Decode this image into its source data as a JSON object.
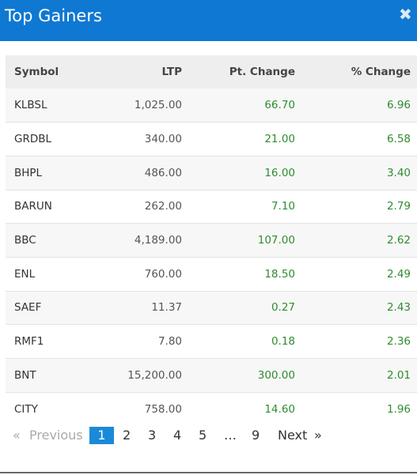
{
  "header": {
    "title": "Top Gainers",
    "close_glyph": "✖",
    "close_icon": "close-icon"
  },
  "table": {
    "columns": [
      "Symbol",
      "LTP",
      "Pt. Change",
      "% Change"
    ],
    "rows": [
      [
        "KLBSL",
        "1,025.00",
        "66.70",
        "6.96"
      ],
      [
        "GRDBL",
        "340.00",
        "21.00",
        "6.58"
      ],
      [
        "BHPL",
        "486.00",
        "16.00",
        "3.40"
      ],
      [
        "BARUN",
        "262.00",
        "7.10",
        "2.79"
      ],
      [
        "BBC",
        "4,189.00",
        "107.00",
        "2.62"
      ],
      [
        "ENL",
        "760.00",
        "18.50",
        "2.49"
      ],
      [
        "SAEF",
        "11.37",
        "0.27",
        "2.43"
      ],
      [
        "RMF1",
        "7.80",
        "0.18",
        "2.36"
      ],
      [
        "BNT",
        "15,200.00",
        "300.00",
        "2.01"
      ],
      [
        "CITY",
        "758.00",
        "14.60",
        "1.96"
      ]
    ]
  },
  "pagination": {
    "first": "«",
    "previous": "Previous",
    "pages": [
      "1",
      "2",
      "3",
      "4",
      "5"
    ],
    "ellipsis": "…",
    "last_page": "9",
    "next": "Next",
    "last": "»",
    "active_page": "1"
  },
  "colors": {
    "header_bg": "#0f78d2",
    "positive": "#2f8c2f",
    "active_page": "#1a8ad8"
  }
}
